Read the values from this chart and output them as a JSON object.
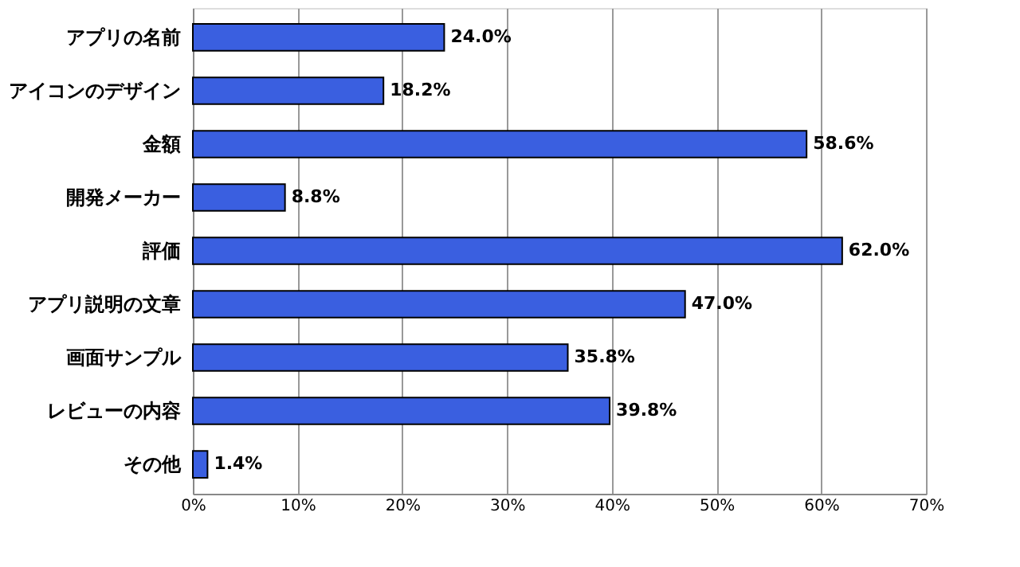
{
  "chart_data": {
    "type": "bar",
    "orientation": "horizontal",
    "categories": [
      "アプリの名前",
      "アイコンのデザイン",
      "金額",
      "開発メーカー",
      "評価",
      "アプリ説明の文章",
      "画面サンプル",
      "レビューの内容",
      "その他"
    ],
    "values": [
      24.0,
      18.2,
      58.6,
      8.8,
      62.0,
      47.0,
      35.8,
      39.8,
      1.4
    ],
    "value_labels": [
      "24.0%",
      "18.2%",
      "58.6%",
      "8.8%",
      "62.0%",
      "47.0%",
      "35.8%",
      "39.8%",
      "1.4%"
    ],
    "color": "#3a5fe0",
    "xlim": [
      0,
      70
    ],
    "xticks": [
      {
        "value": 0,
        "label": "0%"
      },
      {
        "value": 10,
        "label": "10%"
      },
      {
        "value": 20,
        "label": "20%"
      },
      {
        "value": 30,
        "label": "30%"
      },
      {
        "value": 40,
        "label": "40%"
      },
      {
        "value": 50,
        "label": "50%"
      },
      {
        "value": 60,
        "label": "60%"
      },
      {
        "value": 70,
        "label": "70%"
      }
    ],
    "grid": "x"
  }
}
